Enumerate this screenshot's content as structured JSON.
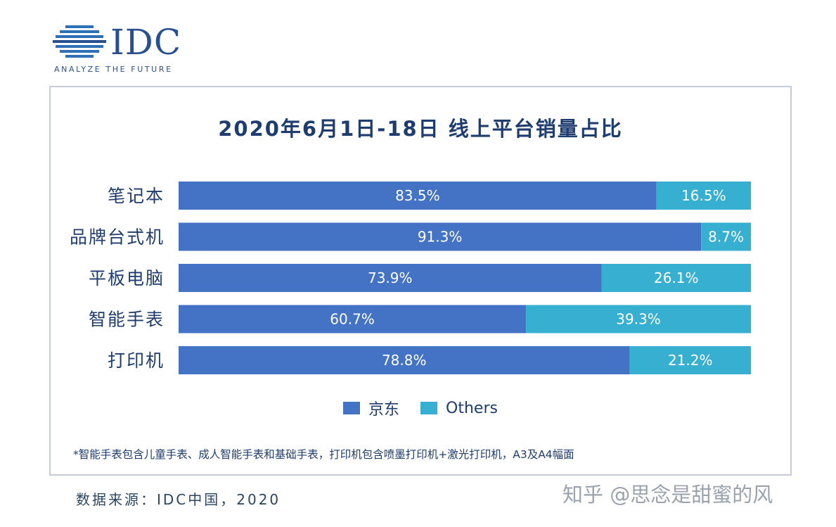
{
  "logo": {
    "name": "IDC",
    "tagline": "ANALYZE THE FUTURE"
  },
  "chart_data": {
    "type": "bar",
    "orientation": "horizontal",
    "stacked": true,
    "title": "2020年6月1日-18日 线上平台销量占比",
    "categories": [
      "笔记本",
      "品牌台式机",
      "平板电脑",
      "智能手表",
      "打印机"
    ],
    "series": [
      {
        "name": "京东",
        "color": "#4472c4",
        "values": [
          83.5,
          91.3,
          73.9,
          60.7,
          78.8
        ],
        "labels": [
          "83.5%",
          "91.3%",
          "73.9%",
          "60.7%",
          "78.8%"
        ]
      },
      {
        "name": "Others",
        "color": "#36afd0",
        "values": [
          16.5,
          8.7,
          26.1,
          39.3,
          21.2
        ],
        "labels": [
          "16.5%",
          "8.7%",
          "26.1%",
          "39.3%",
          "21.2%"
        ]
      }
    ],
    "xlim": [
      0,
      100
    ],
    "grid": false,
    "legend_position": "bottom"
  },
  "footnote": "*智能手表包含儿童手表、成人智能手表和基础手表，打印机包含喷墨打印机+激光打印机，A3及A4幅面",
  "source": "数据来源：IDC中国，2020",
  "watermark": "知乎 @思念是甜蜜的风"
}
